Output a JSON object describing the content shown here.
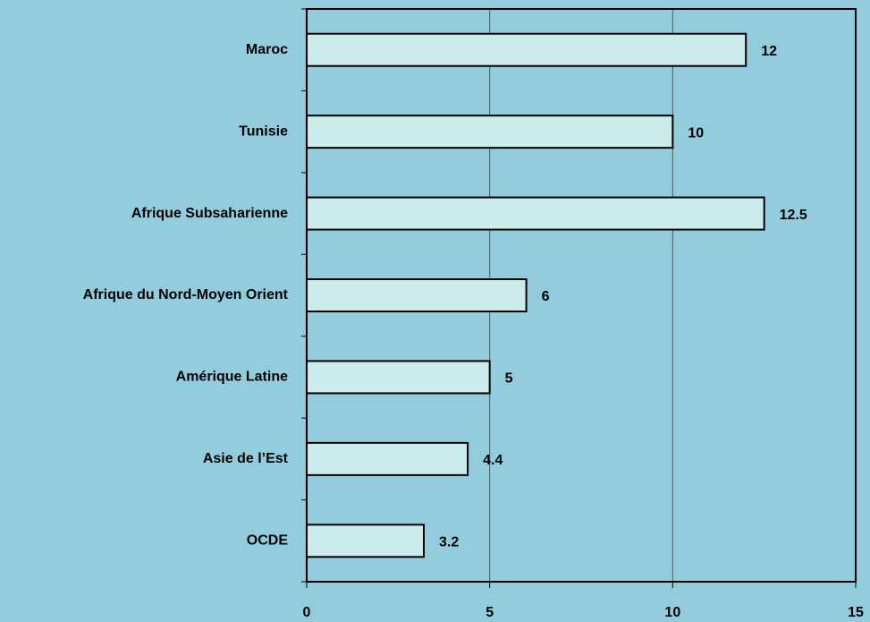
{
  "chart_data": {
    "type": "bar",
    "orientation": "horizontal",
    "categories": [
      "Maroc",
      "Tunisie",
      "Afrique Subsaharienne",
      "Afrique du Nord-Moyen Orient",
      "Amérique Latine",
      "Asie de l’Est",
      "OCDE"
    ],
    "values": [
      12,
      10,
      12.5,
      6,
      5,
      4.4,
      3.2
    ],
    "color": "#ccecec",
    "xlim": [
      0,
      15
    ],
    "xticks": [
      0,
      5,
      10,
      15
    ],
    "grid": true
  }
}
